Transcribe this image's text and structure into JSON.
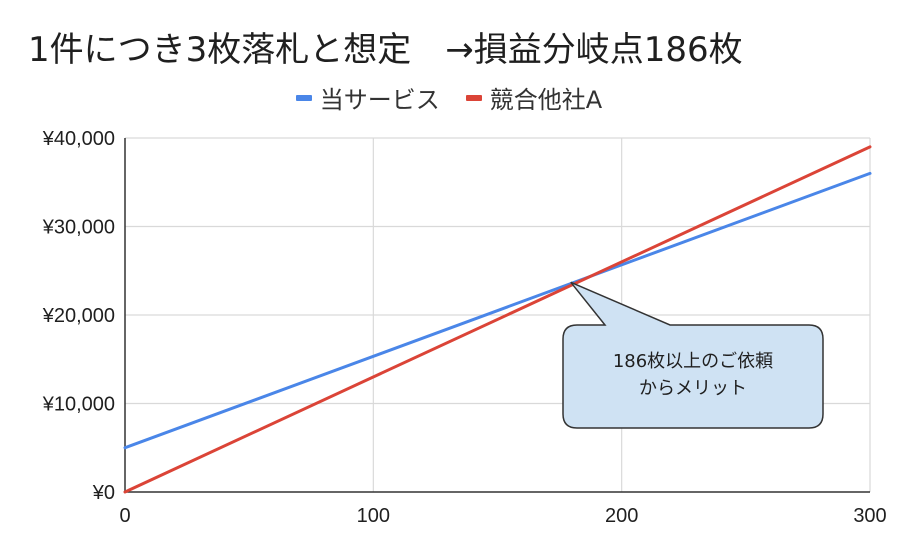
{
  "chart_data": {
    "type": "line",
    "title": "1件につき3枚落札と想定　→損益分岐点186枚",
    "xlabel": "",
    "ylabel": "",
    "xlim": [
      0,
      300
    ],
    "ylim": [
      0,
      40000
    ],
    "x_ticks": [
      "0",
      "100",
      "200",
      "300"
    ],
    "y_ticks": [
      "¥0",
      "¥10,000",
      "¥20,000",
      "¥30,000",
      "¥40,000"
    ],
    "x_tick_values": [
      0,
      100,
      200,
      300
    ],
    "y_tick_values": [
      0,
      10000,
      20000,
      30000,
      40000
    ],
    "grid": true,
    "legend_position": "top-center",
    "series": [
      {
        "name": "当サービス",
        "color": "#4a86e8",
        "x": [
          0,
          300
        ],
        "y": [
          5000,
          36000
        ]
      },
      {
        "name": "競合他社A",
        "color": "#db4437",
        "x": [
          0,
          300
        ],
        "y": [
          0,
          39000
        ]
      }
    ],
    "annotation": {
      "lines": [
        "186枚以上のご依頼",
        "からメリット"
      ],
      "points_to": {
        "x": 190,
        "y": 24600
      },
      "fill": "#cfe2f3"
    }
  }
}
